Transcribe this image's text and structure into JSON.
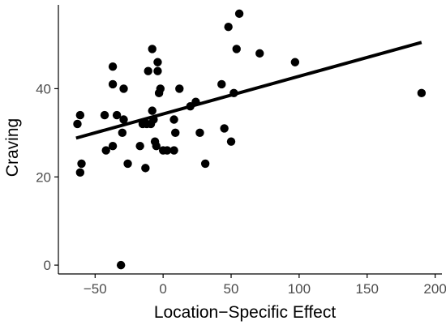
{
  "chart_data": {
    "type": "scatter",
    "xlabel": "Location−Specific Effect",
    "ylabel": "Craving",
    "xlim": [
      -77,
      205
    ],
    "ylim": [
      -2,
      59
    ],
    "xticks": [
      -50,
      0,
      50,
      100,
      150,
      200
    ],
    "yticks": [
      0,
      20,
      40
    ],
    "grid": false,
    "legend": "none",
    "colors": {
      "points": "#000000",
      "trend_line": "#000000",
      "axes": "#000000",
      "tick_labels": "#4d4d4d"
    },
    "series": [
      {
        "points": [
          {
            "x": -63,
            "y": 32
          },
          {
            "x": -61,
            "y": 34
          },
          {
            "x": -61,
            "y": 21
          },
          {
            "x": -60,
            "y": 23
          },
          {
            "x": -42,
            "y": 26
          },
          {
            "x": -43,
            "y": 34
          },
          {
            "x": -37,
            "y": 27
          },
          {
            "x": -37,
            "y": 41
          },
          {
            "x": -37,
            "y": 45
          },
          {
            "x": -34,
            "y": 34
          },
          {
            "x": -31,
            "y": 0
          },
          {
            "x": -30,
            "y": 30
          },
          {
            "x": -29,
            "y": 33
          },
          {
            "x": -29,
            "y": 40
          },
          {
            "x": -26,
            "y": 23
          },
          {
            "x": -17,
            "y": 27
          },
          {
            "x": -15,
            "y": 32
          },
          {
            "x": -13,
            "y": 22
          },
          {
            "x": -12,
            "y": 32
          },
          {
            "x": -11,
            "y": 44
          },
          {
            "x": -9,
            "y": 32
          },
          {
            "x": -8,
            "y": 49
          },
          {
            "x": -8,
            "y": 35
          },
          {
            "x": -7,
            "y": 33
          },
          {
            "x": -6,
            "y": 28
          },
          {
            "x": -5,
            "y": 27
          },
          {
            "x": -4,
            "y": 44
          },
          {
            "x": -4,
            "y": 46
          },
          {
            "x": -3,
            "y": 39
          },
          {
            "x": -2,
            "y": 40
          },
          {
            "x": 0,
            "y": 26
          },
          {
            "x": 3,
            "y": 26
          },
          {
            "x": 8,
            "y": 26
          },
          {
            "x": 8,
            "y": 33
          },
          {
            "x": 9,
            "y": 30
          },
          {
            "x": 12,
            "y": 40
          },
          {
            "x": 20,
            "y": 36
          },
          {
            "x": 24,
            "y": 37
          },
          {
            "x": 27,
            "y": 30
          },
          {
            "x": 31,
            "y": 23
          },
          {
            "x": 43,
            "y": 41
          },
          {
            "x": 45,
            "y": 31
          },
          {
            "x": 48,
            "y": 54
          },
          {
            "x": 50,
            "y": 28
          },
          {
            "x": 52,
            "y": 39
          },
          {
            "x": 54,
            "y": 49
          },
          {
            "x": 56,
            "y": 57
          },
          {
            "x": 71,
            "y": 48
          },
          {
            "x": 97,
            "y": 46
          },
          {
            "x": 190,
            "y": 39
          }
        ]
      }
    ],
    "trend_line": {
      "x": [
        -64,
        190
      ],
      "y": [
        28.8,
        50.5
      ]
    }
  }
}
